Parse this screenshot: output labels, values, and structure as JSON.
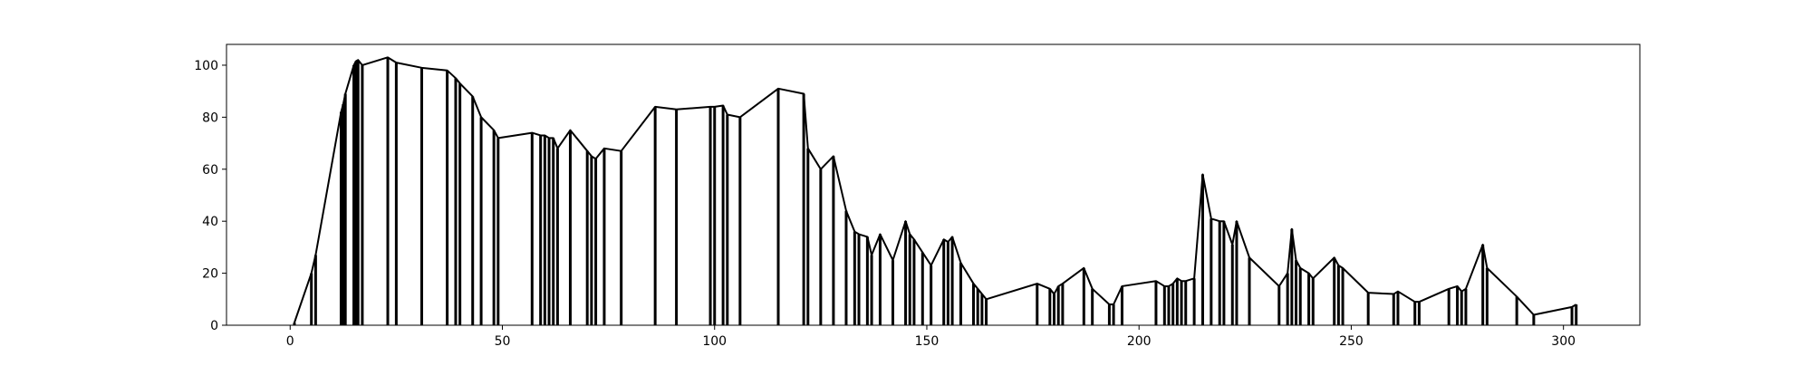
{
  "chart_data": {
    "type": "line",
    "title": "",
    "xlabel": "",
    "ylabel": "",
    "xlim": [
      -15,
      318
    ],
    "ylim": [
      0,
      108
    ],
    "xticks": [
      0,
      50,
      100,
      150,
      200,
      250,
      300
    ],
    "yticks": [
      0,
      20,
      40,
      60,
      80,
      100
    ],
    "grid": false,
    "legend": "none",
    "colors": {
      "line": "#000000",
      "bars": "#000000",
      "frame": "#000000",
      "background": "#ffffff"
    },
    "series": [
      {
        "x": [
          1,
          5,
          6,
          12,
          12.5,
          13,
          15,
          15.5,
          16,
          17,
          23,
          25,
          31,
          37,
          39,
          40,
          43,
          45,
          48,
          49,
          57,
          59,
          60,
          61,
          62,
          63,
          66,
          70,
          71,
          72,
          74,
          78,
          86,
          91,
          99,
          100,
          102,
          103,
          106,
          115,
          121,
          122,
          125,
          128,
          131,
          133,
          134,
          136,
          137,
          139,
          142,
          145,
          146,
          147,
          149,
          151,
          154,
          155,
          156,
          158,
          161,
          162,
          163,
          164,
          176,
          179,
          180,
          181,
          182,
          187,
          189,
          193,
          194,
          196,
          204,
          206,
          207,
          208,
          209,
          210,
          211,
          213,
          215,
          217,
          219,
          220,
          222,
          223,
          226,
          233,
          235,
          236,
          237,
          238,
          240,
          241,
          246,
          247,
          248,
          254,
          260,
          261,
          265,
          266,
          273,
          275,
          276,
          277,
          281,
          282,
          289,
          293,
          302,
          303
        ],
        "y": [
          1,
          20,
          27,
          82,
          85,
          89,
          100,
          101.5,
          102,
          100,
          103,
          101,
          99,
          98,
          95,
          93,
          88,
          80,
          75,
          72,
          74,
          73,
          73,
          72,
          72,
          68,
          75,
          67,
          65,
          64,
          68,
          67,
          84,
          83,
          84,
          84,
          84.5,
          81,
          80,
          91,
          89,
          68,
          60,
          65,
          44,
          36,
          35,
          34,
          27,
          35,
          25,
          40,
          35,
          33,
          28,
          23,
          33,
          32,
          34,
          24,
          16,
          14,
          12,
          10,
          16,
          14,
          12,
          15,
          16,
          22,
          14,
          8,
          8,
          15,
          17,
          15,
          15,
          16,
          18,
          17,
          17,
          18,
          58,
          41,
          40,
          40,
          31,
          40,
          26,
          15,
          20,
          37,
          25,
          22,
          20,
          18,
          26,
          23,
          22,
          12.5,
          12,
          13,
          9,
          9,
          14,
          15,
          13,
          14,
          31,
          22,
          11,
          4,
          7,
          8
        ]
      }
    ]
  }
}
